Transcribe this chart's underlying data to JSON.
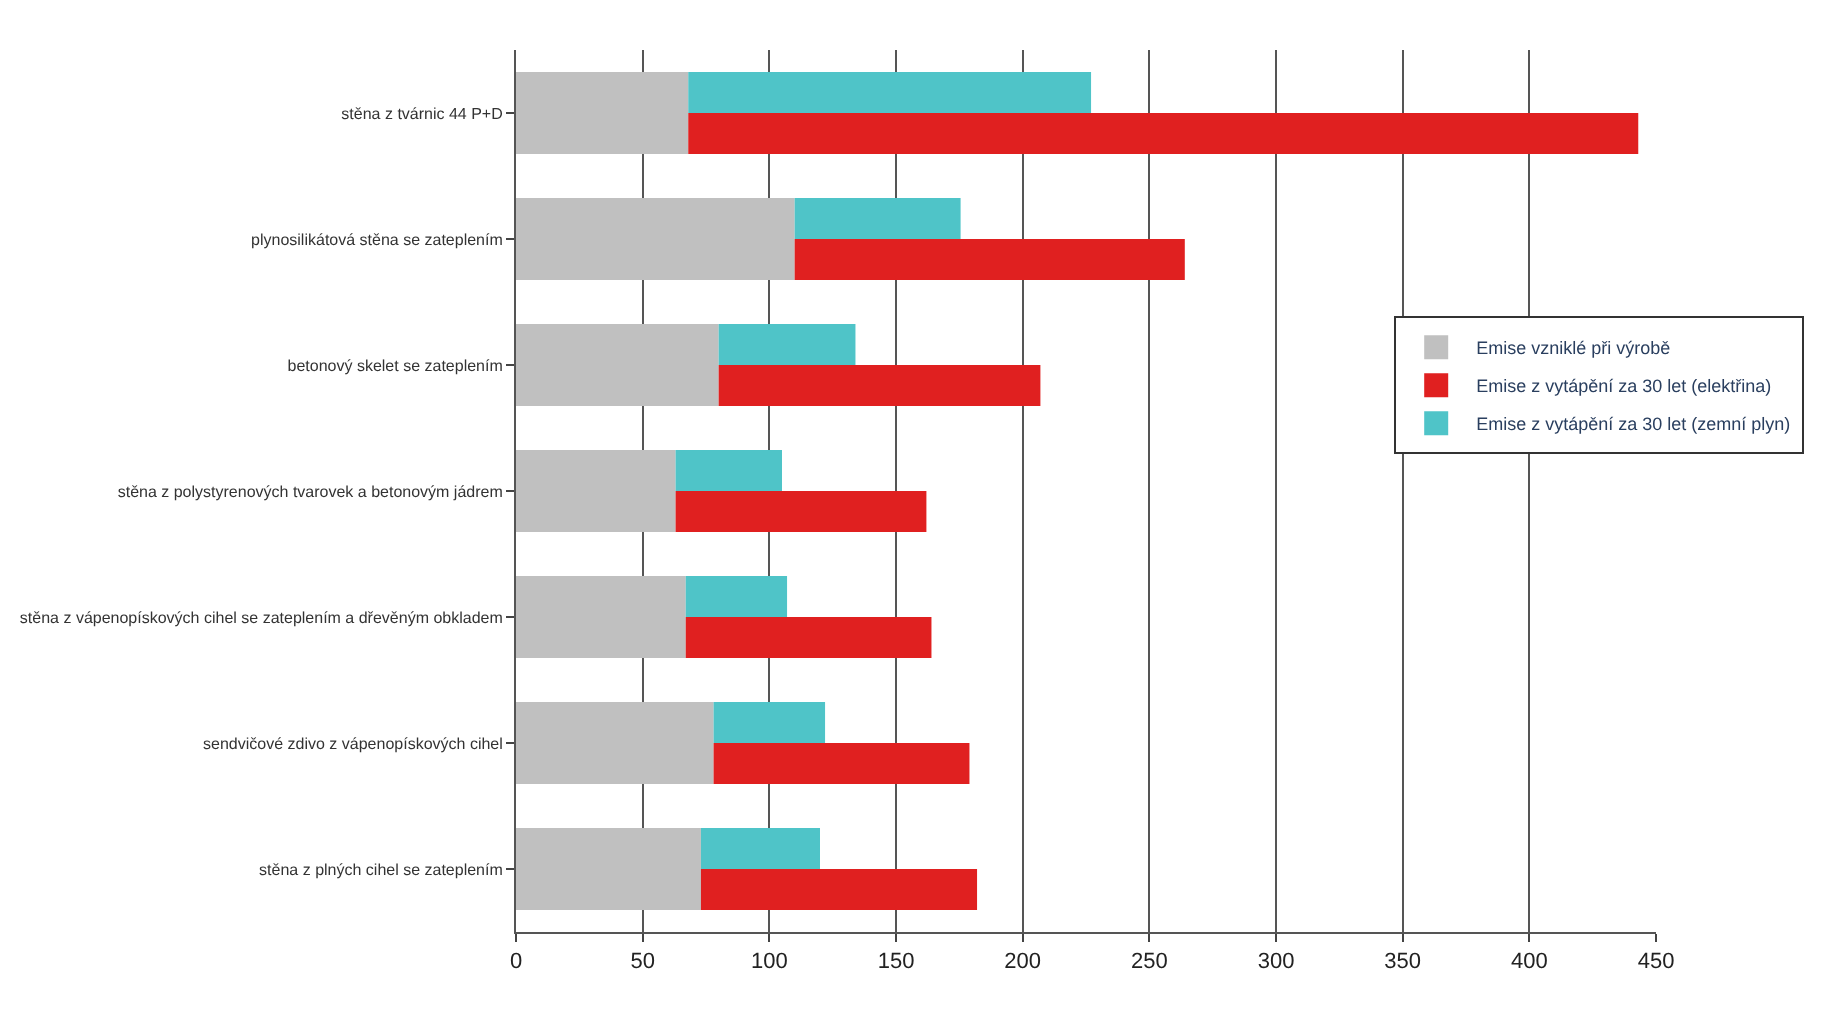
{
  "chart_data": {
    "type": "bar",
    "orientation": "horizontal",
    "categories": [
      "stěna z tvárnic 44 P+D",
      "plynosilikátová stěna se zateplením",
      "betonový skelet se zateplením",
      "stěna z polystyrenových tvarovek a betonovým jádrem",
      "stěna z vápenopískových cihel se zateplením a dřevěným obkladem",
      "sendvičové zdivo z vápenopískových cihel",
      "stěna z plných cihel se zateplením"
    ],
    "series": [
      {
        "name": "Emise vzniklé při výrobě",
        "color": "#c0c0c0",
        "values": [
          68,
          110,
          80,
          63,
          67,
          78,
          73
        ]
      },
      {
        "name": "Emise z vytápění za 30 let (elektřina)",
        "color": "#e02020",
        "base": [
          68,
          110,
          80,
          63,
          67,
          78,
          73
        ],
        "values": [
          375,
          154,
          127,
          99,
          97,
          101,
          109
        ]
      },
      {
        "name": "Emise z vytápění za 30 let (zemní plyn)",
        "color": "#4fc4c8",
        "base": [
          68,
          110,
          80,
          63,
          67,
          78,
          73
        ],
        "values": [
          159,
          65.5,
          54,
          42,
          40,
          44,
          47
        ]
      }
    ],
    "xlim": [
      0,
      450
    ],
    "xticks": [
      0,
      50,
      100,
      150,
      200,
      250,
      300,
      350,
      400,
      450
    ],
    "grid": "x",
    "legend": "right"
  }
}
